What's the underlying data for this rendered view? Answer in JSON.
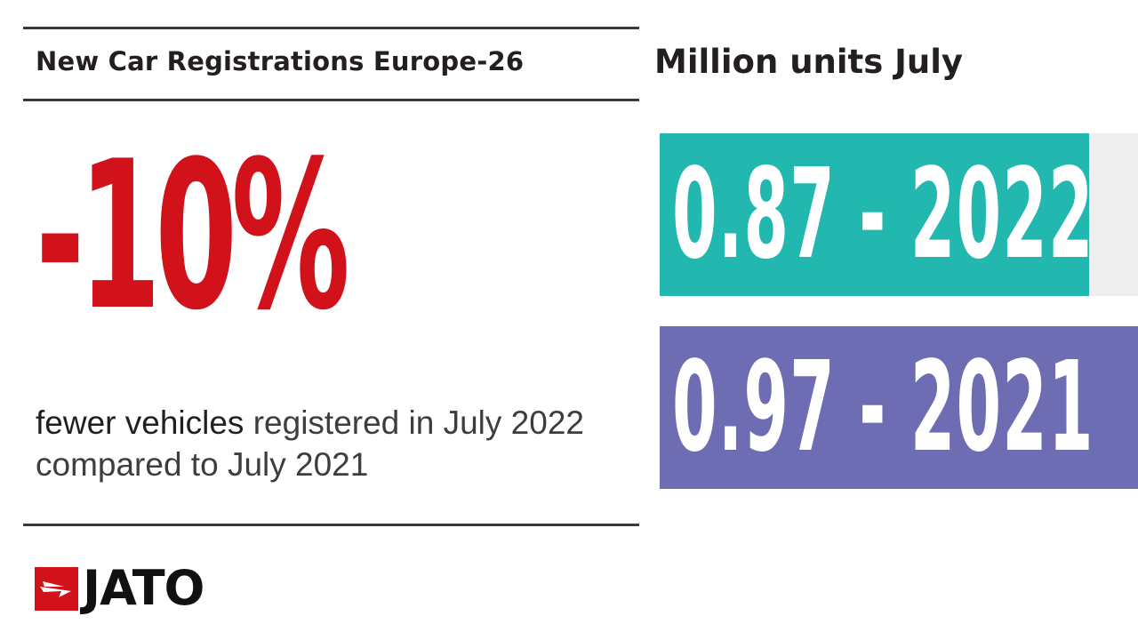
{
  "header": {
    "left_title": "New Car Registrations Europe-26",
    "right_title": "Million units July"
  },
  "headline": {
    "change": "-10%",
    "caption_emphasis": "fewer vehicles",
    "caption_rest": " registered in July 2022 compared to July 2021"
  },
  "chart_data": {
    "type": "bar",
    "orientation": "horizontal",
    "title": "Million units July",
    "categories": [
      "2022",
      "2021"
    ],
    "values": [
      0.87,
      0.97
    ],
    "labels": [
      "0.87 - 2022",
      "0.97 - 2021"
    ],
    "colors": [
      "#22b8b0",
      "#6e6cb2"
    ],
    "track_color": "#eeeeee",
    "xlim": [
      0,
      0.97
    ],
    "grid": false,
    "legend": "none"
  },
  "logo": {
    "text": "JATO",
    "icon": "jato-arrow-icon",
    "brand_color": "#d1121a"
  },
  "colors": {
    "accent_red": "#d1121a",
    "rule": "#3a3a3a",
    "text": "#231f20"
  }
}
